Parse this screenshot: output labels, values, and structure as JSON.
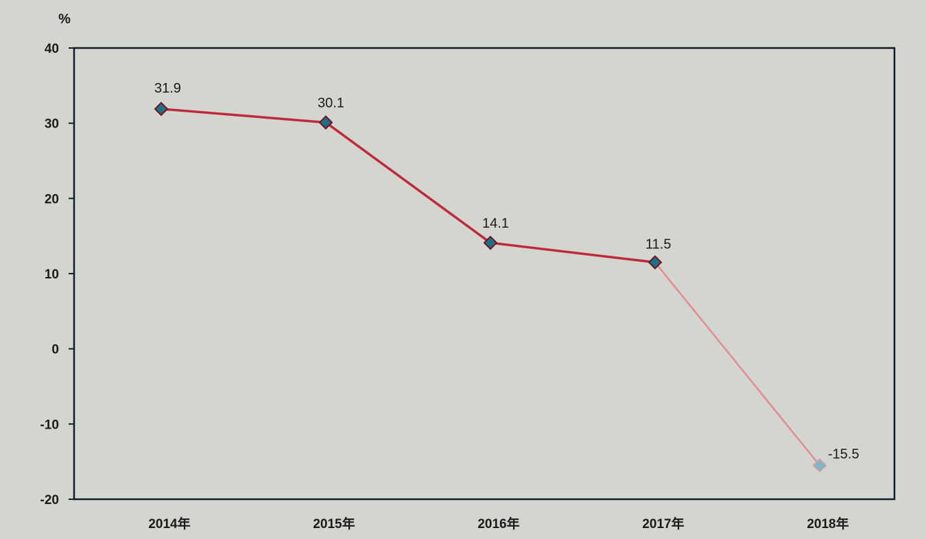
{
  "chart_data": {
    "type": "line",
    "title": "",
    "xlabel": "",
    "ylabel": "%",
    "categories": [
      "2014年",
      "2015年",
      "2016年",
      "2017年",
      "2018年"
    ],
    "series": [
      {
        "values": [
          31.9,
          30.1,
          14.1,
          11.5,
          -15.5
        ],
        "data_labels": [
          "31.9",
          "30.1",
          "14.1",
          "11.5",
          "-15.5"
        ]
      }
    ],
    "y_ticks": [
      "40",
      "30",
      "20",
      "10",
      "0",
      "-10",
      "-20"
    ],
    "y_tick_values": [
      40,
      30,
      20,
      10,
      0,
      -10,
      -20
    ],
    "ylim": [
      -20,
      40
    ],
    "grid": false,
    "legend": "none",
    "colors": {
      "line": "#c0283c",
      "marker_fill": "#1f6f86",
      "marker_stroke": "#6e1220",
      "frame": "#101a2a",
      "text": "#1a1a1a",
      "background": "#d3d6cf"
    }
  }
}
